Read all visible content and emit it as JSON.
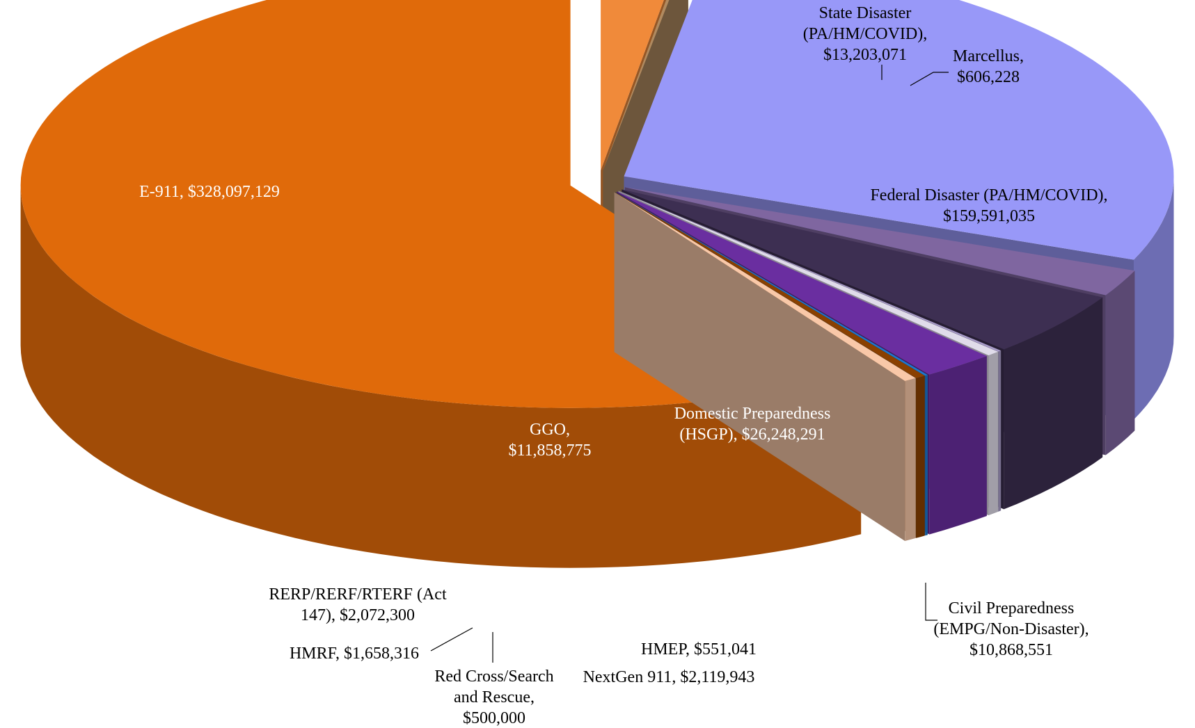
{
  "chart_data": {
    "type": "pie3d",
    "categories": [
      "State Disaster (PA/HM/COVID)",
      "Marcellus",
      "Federal Disaster (PA/HM/COVID)",
      "Civil Preparedness (EMPG/Non-Disaster)",
      "Domestic Preparedness (HSGP)",
      "HMEP",
      "NextGen 911",
      "GGO",
      "Red Cross/Search and Rescue",
      "HMRF",
      "RERP/RERF/RTERF (Act 147)",
      "E-911"
    ],
    "values": [
      13203071,
      606228,
      159591035,
      10868551,
      26248291,
      551041,
      2119943,
      11858775,
      500000,
      1658316,
      2072300,
      328097129
    ],
    "value_labels": [
      "$13,203,071",
      "$606,228",
      "$159,591,035",
      "$10,868,551",
      "$26,248,291",
      "$551,041",
      "$2,119,943",
      "$11,858,775",
      "$500,000",
      "$1,658,316",
      "$2,072,300",
      "$328,097,129"
    ],
    "colors": [
      "#f08a3a",
      "#b08a60",
      "#9898f8",
      "#7f66a0",
      "#3d2f52",
      "#a89cc8",
      "#e0dcea",
      "#6a2ea0",
      "#1a7ad0",
      "#8a4000",
      "#f9c8a8",
      "#e06a0a"
    ]
  }
}
